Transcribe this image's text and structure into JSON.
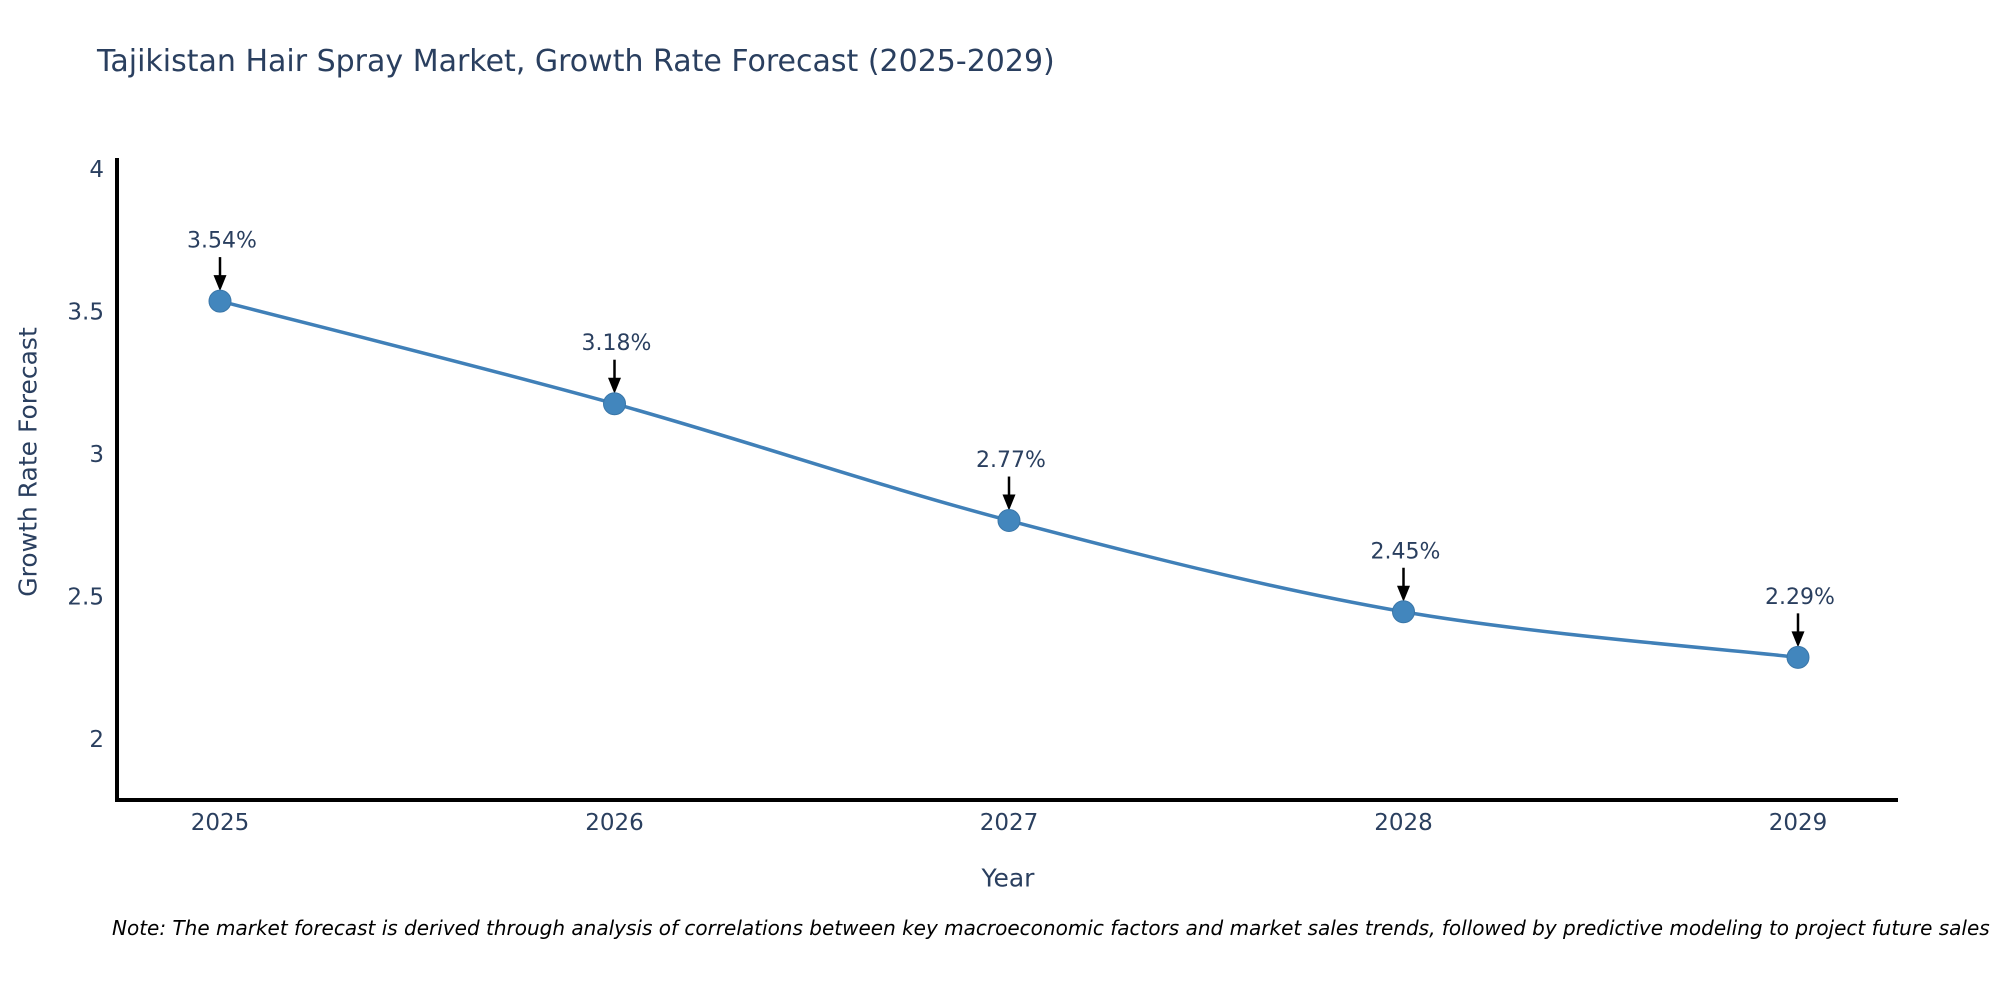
{
  "title": "Tajikistan Hair Spray Market, Growth Rate Forecast (2025-2029)",
  "note": "Note: The market forecast is derived through analysis of correlations between key macroeconomic factors and market sales trends, followed by predictive modeling to project future sales",
  "chart_data": {
    "type": "line",
    "title": "Tajikistan Hair Spray Market, Growth Rate Forecast (2025-2029)",
    "xlabel": "Year",
    "ylabel": "Growth Rate Forecast",
    "categories": [
      "2025",
      "2026",
      "2027",
      "2028",
      "2029"
    ],
    "values": [
      3.54,
      3.18,
      2.77,
      2.45,
      2.29
    ],
    "point_labels": [
      "3.54%",
      "3.18%",
      "2.77%",
      "2.45%",
      "2.29%"
    ],
    "yticks": [
      4,
      3.5,
      3,
      2.5,
      2
    ],
    "ylim": [
      1.79,
      4.04
    ],
    "grid": false,
    "legend": "none",
    "line_shape": "spline",
    "line_color": "#4080b8",
    "marker_color": "#4286bd",
    "marker_edge_color": "#3a76a8",
    "axis_color": "#000000",
    "text_color": "#2a3f5f",
    "annotation_color": "#2a3f5f",
    "arrow_color": "#000000"
  }
}
